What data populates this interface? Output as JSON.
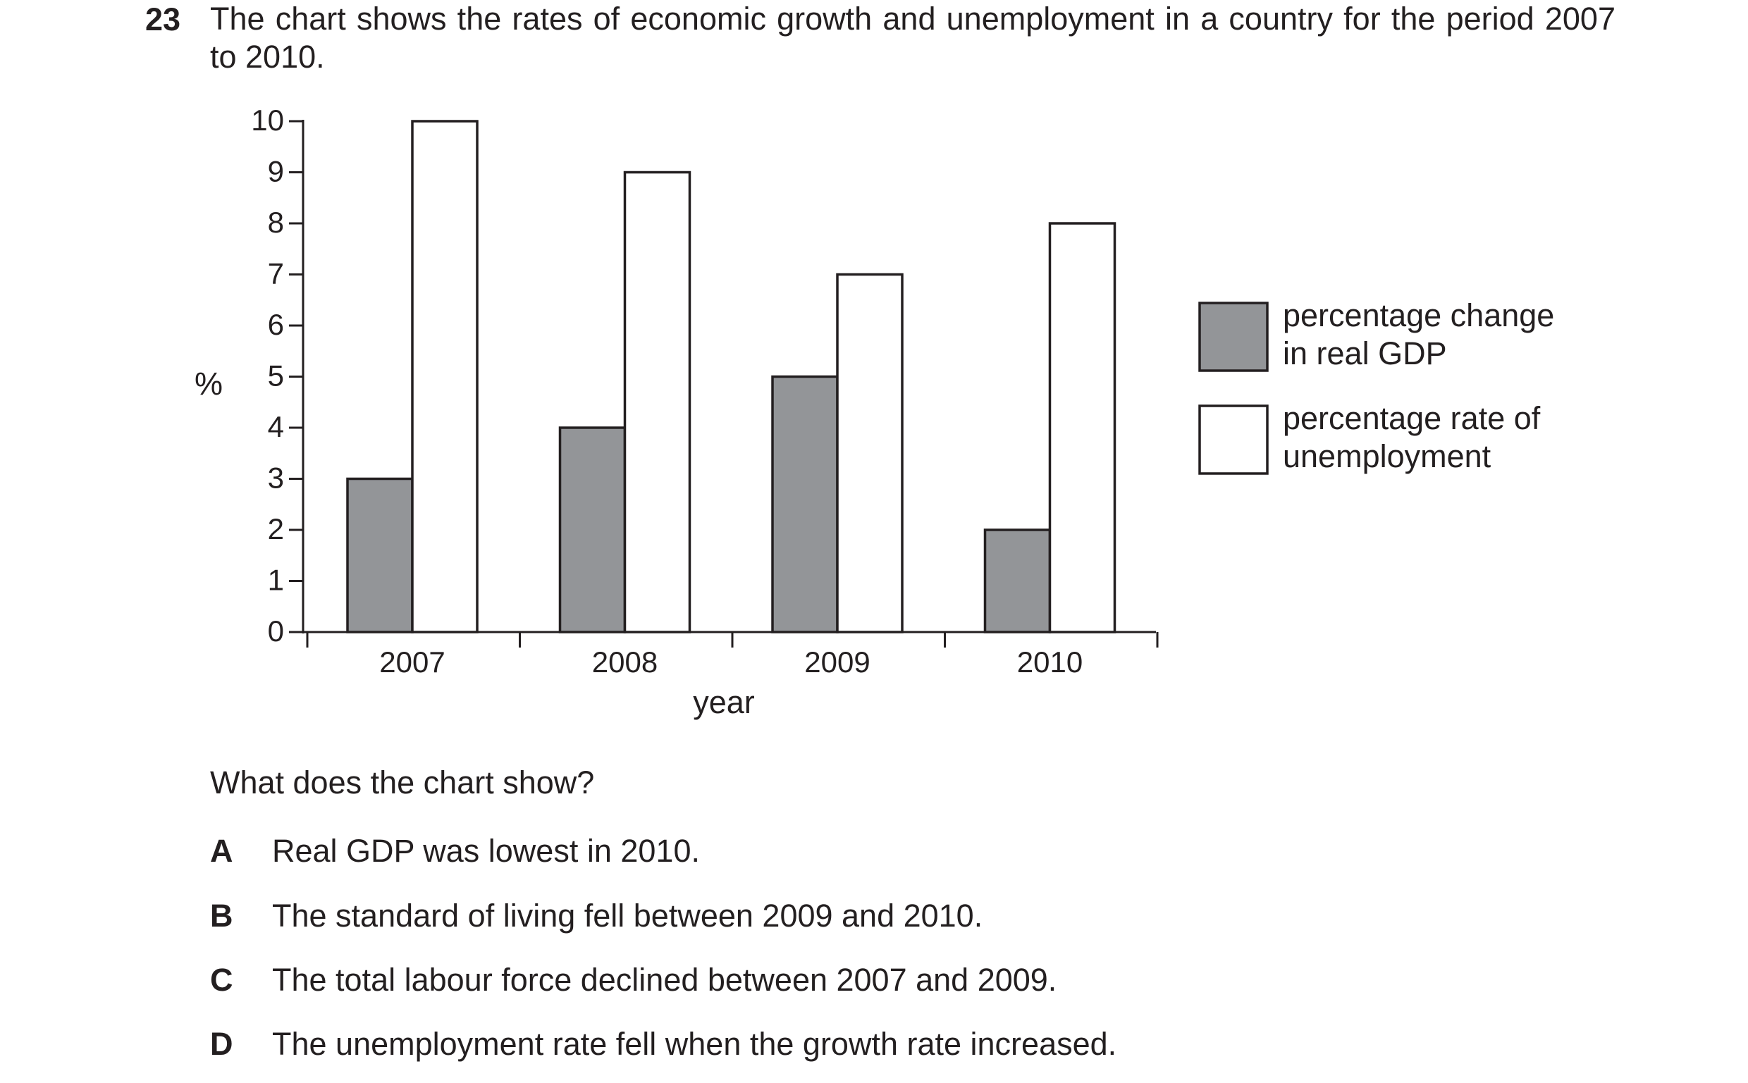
{
  "question": {
    "number": "23",
    "stem": "The chart shows the rates of economic growth and unemployment in a country for the period 2007 to 2010.",
    "prompt": "What does the chart show?",
    "options": [
      {
        "letter": "A",
        "text": "Real GDP was lowest in 2010."
      },
      {
        "letter": "B",
        "text": "The standard of living fell between 2009 and 2010."
      },
      {
        "letter": "C",
        "text": "The total labour force declined between 2007 and 2009."
      },
      {
        "letter": "D",
        "text": "The unemployment rate fell when the growth rate increased."
      }
    ]
  },
  "chart_data": {
    "type": "bar",
    "title": "",
    "xlabel": "year",
    "ylabel": "%",
    "categories": [
      "2007",
      "2008",
      "2009",
      "2010"
    ],
    "yticks": [
      "0",
      "1",
      "2",
      "3",
      "4",
      "5",
      "6",
      "7",
      "8",
      "9",
      "10"
    ],
    "ylim": [
      0,
      10
    ],
    "grid": false,
    "legend_position": "right",
    "series": [
      {
        "name": "percentage change in real GDP",
        "legend_lines": [
          "percentage change",
          "in real GDP"
        ],
        "values": [
          3,
          4,
          5,
          2
        ],
        "color": "#939598"
      },
      {
        "name": "percentage rate of unemployment",
        "legend_lines": [
          "percentage rate of",
          "unemployment"
        ],
        "values": [
          10,
          9,
          7,
          8
        ],
        "color": "#ffffff"
      }
    ]
  }
}
